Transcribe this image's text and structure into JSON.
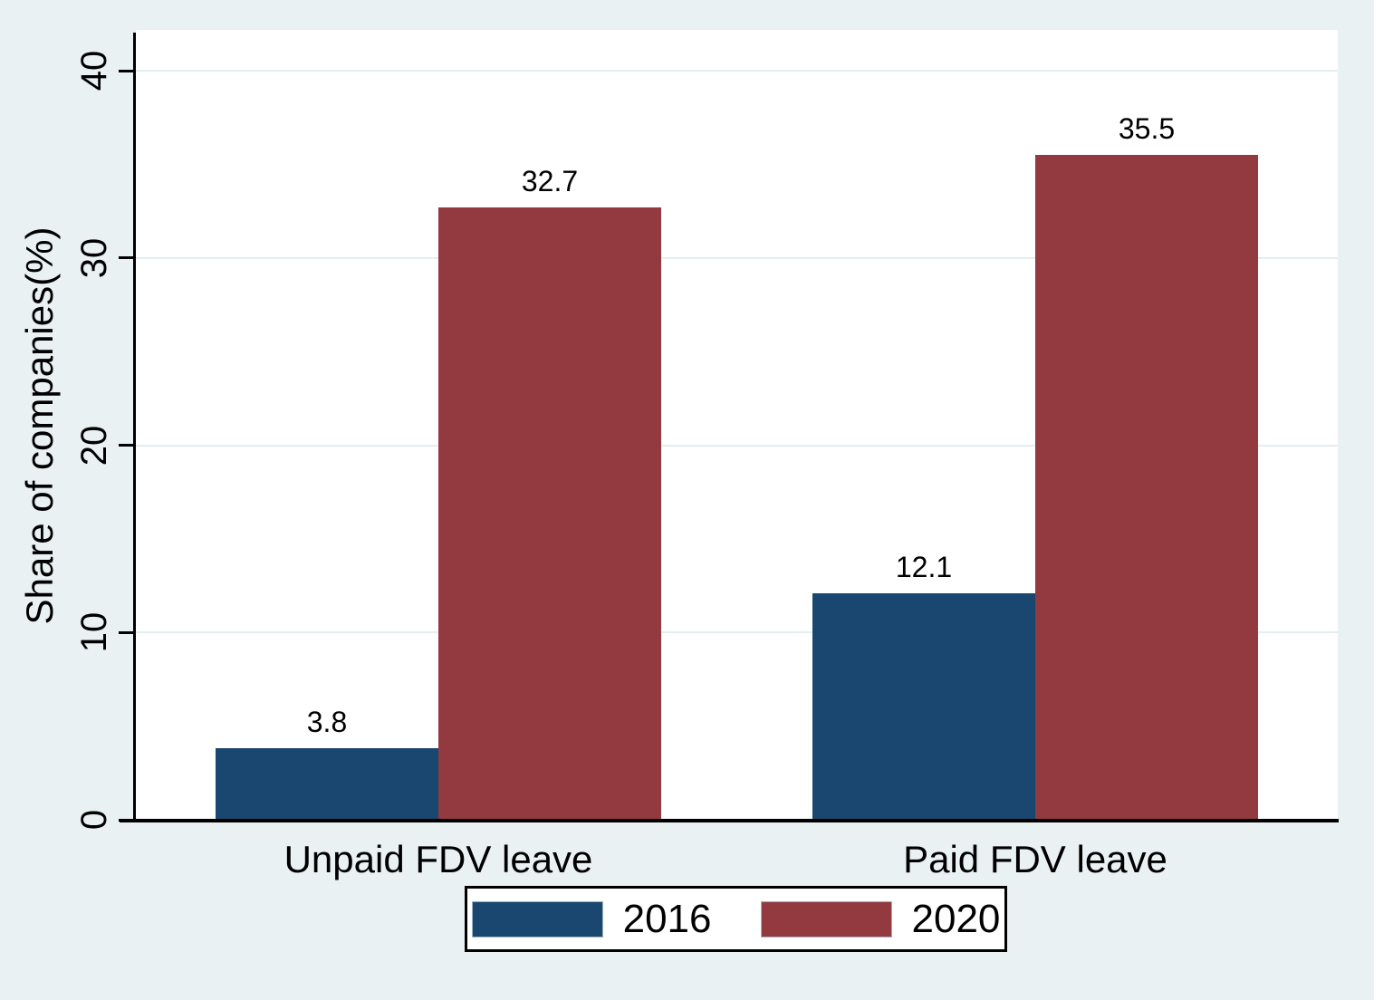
{
  "chart_data": {
    "type": "bar",
    "title": "",
    "xlabel": "",
    "ylabel": "Share of companies(%)",
    "categories": [
      "Unpaid FDV leave",
      "Paid FDV leave"
    ],
    "series": [
      {
        "name": "2016",
        "color": "#1A476F",
        "values": [
          3.8,
          12.1
        ]
      },
      {
        "name": "2020",
        "color": "#923A40",
        "values": [
          32.7,
          35.5
        ]
      }
    ],
    "value_labels": [
      [
        "3.8",
        "12.1"
      ],
      [
        "32.7",
        "35.5"
      ]
    ],
    "ylim": [
      0,
      40
    ],
    "yticks": [
      0,
      10,
      20,
      30,
      40
    ],
    "grid": true,
    "legend_position": "bottom",
    "legend_entries": [
      "2016",
      "2020"
    ]
  },
  "colors": {
    "background": "#EAF1F2",
    "plot_background": "#FFFFFF",
    "gridline": "#E3EEF0",
    "axis": "#000000",
    "text": "#000000",
    "series_2016": "#1A476F",
    "series_2020": "#923A40"
  }
}
